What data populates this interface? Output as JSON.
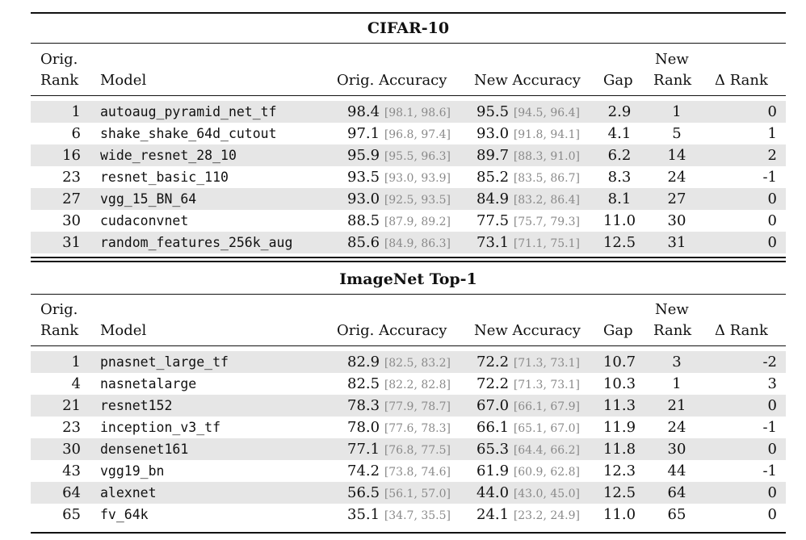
{
  "headers": {
    "orig_rank_top": "Orig.",
    "orig_rank_bottom": "Rank",
    "model": "Model",
    "orig_accuracy": "Orig. Accuracy",
    "new_accuracy": "New Accuracy",
    "gap": "Gap",
    "new_rank_top": "New",
    "new_rank_bottom": "Rank",
    "delta_rank": "Δ Rank"
  },
  "sections": [
    {
      "title": "CIFAR-10",
      "rows": [
        {
          "orig_rank": "1",
          "model": "autoaug_pyramid_net_tf",
          "orig_acc": "98.4",
          "orig_ci": "[98.1, 98.6]",
          "new_acc": "95.5",
          "new_ci": "[94.5, 96.4]",
          "gap": "2.9",
          "new_rank": "1",
          "delta_rank": "0"
        },
        {
          "orig_rank": "6",
          "model": "shake_shake_64d_cutout",
          "orig_acc": "97.1",
          "orig_ci": "[96.8, 97.4]",
          "new_acc": "93.0",
          "new_ci": "[91.8, 94.1]",
          "gap": "4.1",
          "new_rank": "5",
          "delta_rank": "1"
        },
        {
          "orig_rank": "16",
          "model": "wide_resnet_28_10",
          "orig_acc": "95.9",
          "orig_ci": "[95.5, 96.3]",
          "new_acc": "89.7",
          "new_ci": "[88.3, 91.0]",
          "gap": "6.2",
          "new_rank": "14",
          "delta_rank": "2"
        },
        {
          "orig_rank": "23",
          "model": "resnet_basic_110",
          "orig_acc": "93.5",
          "orig_ci": "[93.0, 93.9]",
          "new_acc": "85.2",
          "new_ci": "[83.5, 86.7]",
          "gap": "8.3",
          "new_rank": "24",
          "delta_rank": "-1"
        },
        {
          "orig_rank": "27",
          "model": "vgg_15_BN_64",
          "orig_acc": "93.0",
          "orig_ci": "[92.5, 93.5]",
          "new_acc": "84.9",
          "new_ci": "[83.2, 86.4]",
          "gap": "8.1",
          "new_rank": "27",
          "delta_rank": "0"
        },
        {
          "orig_rank": "30",
          "model": "cudaconvnet",
          "orig_acc": "88.5",
          "orig_ci": "[87.9, 89.2]",
          "new_acc": "77.5",
          "new_ci": "[75.7, 79.3]",
          "gap": "11.0",
          "new_rank": "30",
          "delta_rank": "0"
        },
        {
          "orig_rank": "31",
          "model": "random_features_256k_aug",
          "orig_acc": "85.6",
          "orig_ci": "[84.9, 86.3]",
          "new_acc": "73.1",
          "new_ci": "[71.1, 75.1]",
          "gap": "12.5",
          "new_rank": "31",
          "delta_rank": "0"
        }
      ]
    },
    {
      "title": "ImageNet Top-1",
      "rows": [
        {
          "orig_rank": "1",
          "model": "pnasnet_large_tf",
          "orig_acc": "82.9",
          "orig_ci": "[82.5, 83.2]",
          "new_acc": "72.2",
          "new_ci": "[71.3, 73.1]",
          "gap": "10.7",
          "new_rank": "3",
          "delta_rank": "-2"
        },
        {
          "orig_rank": "4",
          "model": "nasnetalarge",
          "orig_acc": "82.5",
          "orig_ci": "[82.2, 82.8]",
          "new_acc": "72.2",
          "new_ci": "[71.3, 73.1]",
          "gap": "10.3",
          "new_rank": "1",
          "delta_rank": "3"
        },
        {
          "orig_rank": "21",
          "model": "resnet152",
          "orig_acc": "78.3",
          "orig_ci": "[77.9, 78.7]",
          "new_acc": "67.0",
          "new_ci": "[66.1, 67.9]",
          "gap": "11.3",
          "new_rank": "21",
          "delta_rank": "0"
        },
        {
          "orig_rank": "23",
          "model": "inception_v3_tf",
          "orig_acc": "78.0",
          "orig_ci": "[77.6, 78.3]",
          "new_acc": "66.1",
          "new_ci": "[65.1, 67.0]",
          "gap": "11.9",
          "new_rank": "24",
          "delta_rank": "-1"
        },
        {
          "orig_rank": "30",
          "model": "densenet161",
          "orig_acc": "77.1",
          "orig_ci": "[76.8, 77.5]",
          "new_acc": "65.3",
          "new_ci": "[64.4, 66.2]",
          "gap": "11.8",
          "new_rank": "30",
          "delta_rank": "0"
        },
        {
          "orig_rank": "43",
          "model": "vgg19_bn",
          "orig_acc": "74.2",
          "orig_ci": "[73.8, 74.6]",
          "new_acc": "61.9",
          "new_ci": "[60.9, 62.8]",
          "gap": "12.3",
          "new_rank": "44",
          "delta_rank": "-1"
        },
        {
          "orig_rank": "64",
          "model": "alexnet",
          "orig_acc": "56.5",
          "orig_ci": "[56.1, 57.0]",
          "new_acc": "44.0",
          "new_ci": "[43.0, 45.0]",
          "gap": "12.5",
          "new_rank": "64",
          "delta_rank": "0"
        },
        {
          "orig_rank": "65",
          "model": "fv_64k",
          "orig_acc": "35.1",
          "orig_ci": "[34.7, 35.5]",
          "new_acc": "24.1",
          "new_ci": "[23.2, 24.9]",
          "gap": "11.0",
          "new_rank": "65",
          "delta_rank": "0"
        }
      ]
    }
  ]
}
